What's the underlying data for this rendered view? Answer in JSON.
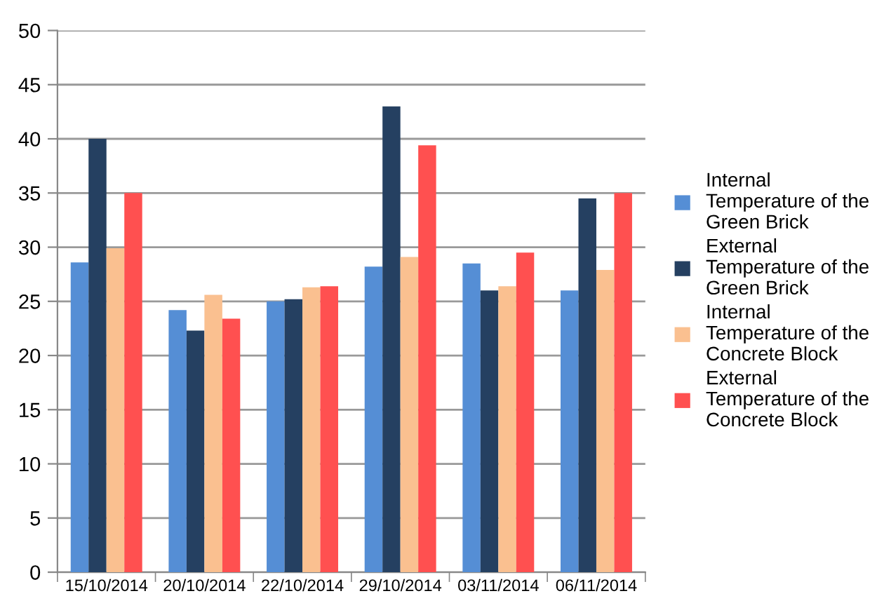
{
  "chart_data": {
    "type": "bar",
    "categories": [
      "15/10/2014",
      "20/10/2014",
      "22/10/2014",
      "29/10/2014",
      "03/11/2014",
      "06/11/2014"
    ],
    "series": [
      {
        "name": "Internal Temperature of the Green Brick",
        "color": "#558ed5",
        "values": [
          28.6,
          24.2,
          25.0,
          28.2,
          28.5,
          26.0
        ]
      },
      {
        "name": "External Temperature of the Green Brick",
        "color": "#254061",
        "values": [
          40.0,
          22.3,
          25.2,
          43.0,
          26.0,
          34.5
        ]
      },
      {
        "name": "Internal Temperature of the Concrete Block",
        "color": "#fac090",
        "values": [
          29.9,
          25.6,
          26.3,
          29.1,
          26.4,
          27.9
        ]
      },
      {
        "name": "External Temperature of the Concrete Block",
        "color": "#ff5050",
        "values": [
          35.0,
          23.4,
          26.4,
          39.4,
          29.5,
          35.0
        ]
      }
    ],
    "ylim": [
      0,
      50
    ],
    "yticks": [
      0,
      5,
      10,
      15,
      20,
      25,
      30,
      35,
      40,
      45,
      50
    ],
    "grid": "y",
    "legend": "right"
  }
}
